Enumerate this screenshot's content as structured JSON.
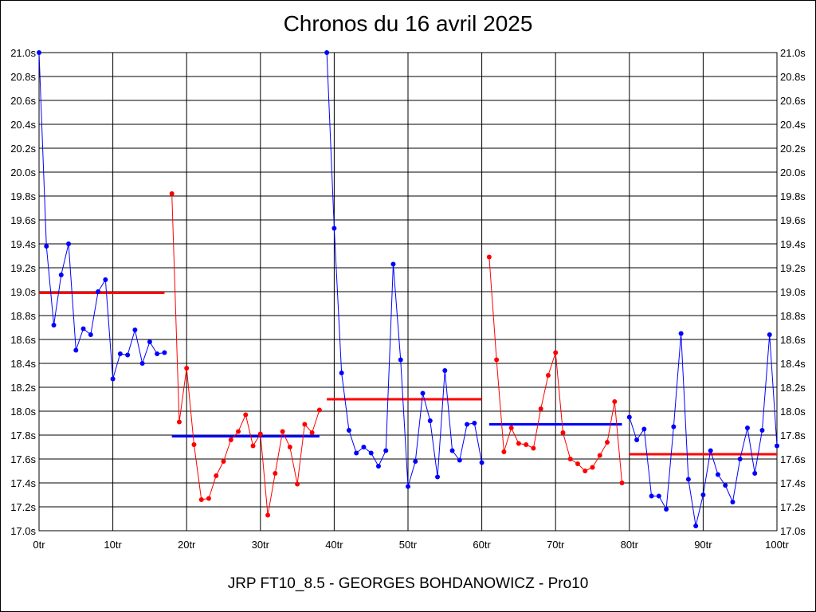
{
  "chart_data": {
    "type": "line",
    "title": "Chronos du 16 avril 2025",
    "subtitle": "JRP FT10_8.5 - GEORGES BOHDANOWICZ - Pro10",
    "xlim": [
      0,
      100
    ],
    "ylim": [
      17.0,
      21.0
    ],
    "x_ticks": [
      0,
      10,
      20,
      30,
      40,
      50,
      60,
      70,
      80,
      90,
      100
    ],
    "x_tick_labels": [
      "0tr",
      "10tr",
      "20tr",
      "30tr",
      "40tr",
      "50tr",
      "60tr",
      "70tr",
      "80tr",
      "90tr",
      "100tr"
    ],
    "y_ticks": [
      17.0,
      17.2,
      17.4,
      17.6,
      17.8,
      18.0,
      18.2,
      18.4,
      18.6,
      18.8,
      19.0,
      19.2,
      19.4,
      19.6,
      19.8,
      20.0,
      20.2,
      20.4,
      20.6,
      20.8,
      21.0
    ],
    "y_tick_labels": [
      "17.0s",
      "17.2s",
      "17.4s",
      "17.6s",
      "17.8s",
      "18.0s",
      "18.2s",
      "18.4s",
      "18.6s",
      "18.8s",
      "19.0s",
      "19.2s",
      "19.4s",
      "19.6s",
      "19.8s",
      "20.0s",
      "20.2s",
      "20.4s",
      "20.6s",
      "20.8s",
      "21.0s"
    ],
    "grid": true,
    "colors": {
      "blue": "#0000ff",
      "red": "#ff0000"
    },
    "series": [
      {
        "color": "#0000ff",
        "points": [
          [
            0,
            21.0
          ],
          [
            1,
            19.38
          ],
          [
            2,
            18.72
          ],
          [
            3,
            19.14
          ],
          [
            4,
            19.4
          ],
          [
            5,
            18.51
          ],
          [
            6,
            18.69
          ],
          [
            7,
            18.64
          ],
          [
            8,
            19.0
          ],
          [
            9,
            19.1
          ],
          [
            10,
            18.27
          ],
          [
            11,
            18.48
          ],
          [
            12,
            18.47
          ],
          [
            13,
            18.68
          ],
          [
            14,
            18.4
          ],
          [
            15,
            18.58
          ],
          [
            16,
            18.48
          ],
          [
            17,
            18.49
          ]
        ]
      },
      {
        "color": "#ff0000",
        "points": [
          [
            18,
            19.82
          ],
          [
            19,
            17.91
          ],
          [
            20,
            18.36
          ],
          [
            21,
            17.72
          ],
          [
            22,
            17.26
          ],
          [
            23,
            17.27
          ],
          [
            24,
            17.46
          ],
          [
            25,
            17.58
          ],
          [
            26,
            17.76
          ],
          [
            27,
            17.83
          ],
          [
            28,
            17.97
          ],
          [
            29,
            17.71
          ],
          [
            30,
            17.81
          ],
          [
            31,
            17.13
          ],
          [
            32,
            17.48
          ],
          [
            33,
            17.83
          ],
          [
            34,
            17.7
          ],
          [
            35,
            17.39
          ],
          [
            36,
            17.89
          ],
          [
            37,
            17.82
          ],
          [
            38,
            18.01
          ]
        ]
      },
      {
        "color": "#0000ff",
        "points": [
          [
            39,
            21.0
          ],
          [
            40,
            19.53
          ],
          [
            41,
            18.32
          ],
          [
            42,
            17.84
          ],
          [
            43,
            17.65
          ],
          [
            44,
            17.7
          ],
          [
            45,
            17.65
          ],
          [
            46,
            17.54
          ],
          [
            47,
            17.67
          ],
          [
            48,
            19.23
          ],
          [
            49,
            18.43
          ],
          [
            50,
            17.37
          ],
          [
            51,
            17.58
          ],
          [
            52,
            18.15
          ],
          [
            53,
            17.92
          ],
          [
            54,
            17.45
          ],
          [
            55,
            18.34
          ],
          [
            56,
            17.67
          ],
          [
            57,
            17.59
          ],
          [
            58,
            17.89
          ],
          [
            59,
            17.9
          ],
          [
            60,
            17.57
          ]
        ]
      },
      {
        "color": "#ff0000",
        "points": [
          [
            61,
            19.29
          ],
          [
            62,
            18.43
          ],
          [
            63,
            17.66
          ],
          [
            64,
            17.86
          ],
          [
            65,
            17.73
          ],
          [
            66,
            17.72
          ],
          [
            67,
            17.69
          ],
          [
            68,
            18.02
          ],
          [
            69,
            18.3
          ],
          [
            70,
            18.49
          ],
          [
            71,
            17.82
          ],
          [
            72,
            17.6
          ],
          [
            73,
            17.56
          ],
          [
            74,
            17.5
          ],
          [
            75,
            17.53
          ],
          [
            76,
            17.63
          ],
          [
            77,
            17.74
          ],
          [
            78,
            18.08
          ],
          [
            79,
            17.4
          ]
        ]
      },
      {
        "color": "#0000ff",
        "points": [
          [
            80,
            17.95
          ],
          [
            81,
            17.76
          ],
          [
            82,
            17.85
          ],
          [
            83,
            17.29
          ],
          [
            84,
            17.29
          ],
          [
            85,
            17.18
          ],
          [
            86,
            17.87
          ],
          [
            87,
            18.65
          ],
          [
            88,
            17.43
          ],
          [
            89,
            17.04
          ],
          [
            90,
            17.3
          ],
          [
            91,
            17.67
          ],
          [
            92,
            17.47
          ],
          [
            93,
            17.38
          ],
          [
            94,
            17.24
          ],
          [
            95,
            17.6
          ],
          [
            96,
            17.86
          ],
          [
            97,
            17.48
          ],
          [
            98,
            17.84
          ],
          [
            99,
            18.64
          ],
          [
            100,
            17.71
          ]
        ]
      }
    ],
    "averages": [
      {
        "color": "#ff0000",
        "x": [
          0,
          17
        ],
        "y": 18.99
      },
      {
        "color": "#0000ff",
        "x": [
          18,
          38
        ],
        "y": 17.79
      },
      {
        "color": "#ff0000",
        "x": [
          39,
          60
        ],
        "y": 18.1
      },
      {
        "color": "#0000ff",
        "x": [
          61,
          79
        ],
        "y": 17.89
      },
      {
        "color": "#ff0000",
        "x": [
          80,
          100
        ],
        "y": 17.64
      }
    ]
  }
}
